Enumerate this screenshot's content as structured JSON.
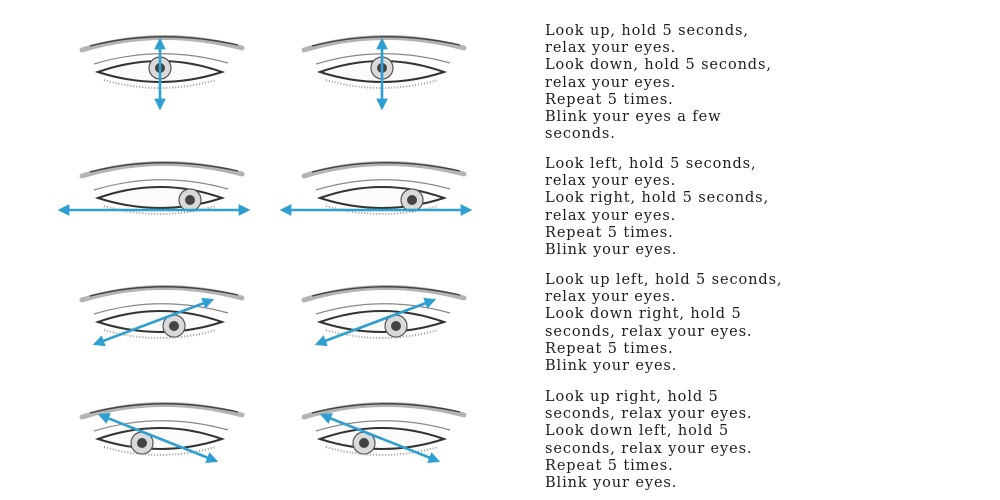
{
  "colors": {
    "arrow": "#2e9fd0",
    "ink": "#1c1c1c",
    "eye_line": "#333333"
  },
  "exercises": [
    {
      "arrow_direction": "vertical",
      "lines": [
        "Look up, hold 5 seconds,",
        "relax your eyes.",
        "Look down, hold 5 seconds,",
        "relax your eyes.",
        "Repeat 5 times.",
        "Blink your eyes a few",
        "seconds."
      ]
    },
    {
      "arrow_direction": "horizontal",
      "lines": [
        "Look left, hold 5 seconds,",
        "relax your eyes.",
        "Look right, hold 5 seconds,",
        "relax your eyes.",
        "Repeat 5 times.",
        "Blink your eyes."
      ]
    },
    {
      "arrow_direction": "diagonal-up-right",
      "lines": [
        "Look up left, hold 5 seconds,",
        "relax your eyes.",
        "Look down right, hold 5",
        "seconds, relax your eyes.",
        "Repeat 5 times.",
        "Blink your eyes."
      ]
    },
    {
      "arrow_direction": "diagonal-up-left",
      "lines": [
        "Look up right, hold 5",
        "seconds, relax your eyes.",
        "Look down left, hold 5",
        "seconds, relax your eyes.",
        "Repeat 5 times.",
        "Blink your eyes."
      ]
    }
  ]
}
